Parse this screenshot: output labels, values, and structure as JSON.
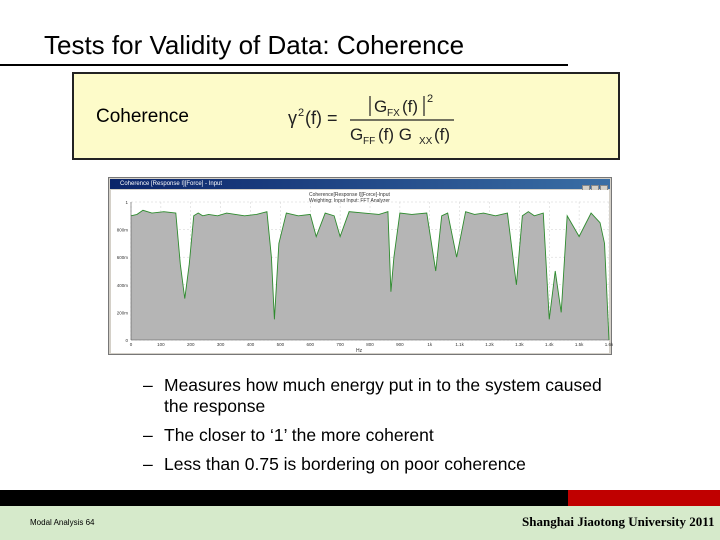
{
  "slide": {
    "title": "Tests for Validity of Data: Coherence",
    "formula_label": "Coherence",
    "bullets": [
      "Measures how much energy put in to the system caused the response",
      "The closer to ‘1’ the more coherent",
      "Less than 0.75 is bordering on poor coherence"
    ],
    "footer_left": "Modal Analysis 64",
    "footer_right": "Shanghai Jiaotong University 2011"
  },
  "colors": {
    "title_rule": "#000000",
    "formula_box_bg": "#fdfbc9",
    "footer_band": "#d6eacb",
    "footer_red": "#c00000",
    "coherence_fill": "#b5b5b5",
    "coherence_line": "#2e8b2e"
  },
  "chart_data": {
    "type": "area",
    "window_title": "Coherence [Response I][Force] - Input",
    "header_lines": [
      "Coherence[Response I][Force]-Input",
      "Weighting: Input   Input: FFT Analyzer"
    ],
    "y_tick_labels": [
      "1",
      "800m",
      "600m",
      "400m",
      "200m",
      "0"
    ],
    "x_tick_labels": [
      "0",
      "100",
      "200",
      "300",
      "400",
      "500",
      "600",
      "700",
      "800",
      "900",
      "1k",
      "1.1k",
      "1.2k",
      "1.3k",
      "1.4k",
      "1.5k",
      "1.6k"
    ],
    "xlabel": "Hz",
    "ylim": [
      0,
      1
    ],
    "xlim": [
      0,
      1600
    ],
    "grid": true,
    "series": [
      {
        "x": [
          0,
          20,
          40,
          70,
          110,
          150,
          165,
          180,
          195,
          210,
          225,
          240,
          260,
          290,
          320,
          350,
          380,
          420,
          455,
          470,
          480,
          495,
          520,
          560,
          600,
          620,
          650,
          680,
          700,
          730,
          780,
          830,
          860,
          870,
          880,
          900,
          940,
          990,
          1020,
          1040,
          1060,
          1090,
          1120,
          1150,
          1180,
          1220,
          1260,
          1290,
          1310,
          1330,
          1350,
          1380,
          1400,
          1420,
          1440,
          1460,
          1500,
          1540,
          1570,
          1585,
          1600
        ],
        "y": [
          0.9,
          0.91,
          0.94,
          0.92,
          0.93,
          0.92,
          0.55,
          0.3,
          0.55,
          0.9,
          0.92,
          0.9,
          0.91,
          0.9,
          0.92,
          0.91,
          0.9,
          0.91,
          0.93,
          0.6,
          0.15,
          0.7,
          0.92,
          0.9,
          0.91,
          0.75,
          0.92,
          0.9,
          0.75,
          0.93,
          0.92,
          0.91,
          0.93,
          0.35,
          0.6,
          0.92,
          0.91,
          0.92,
          0.5,
          0.9,
          0.92,
          0.6,
          0.93,
          0.91,
          0.92,
          0.9,
          0.92,
          0.4,
          0.9,
          0.93,
          0.9,
          0.92,
          0.15,
          0.5,
          0.2,
          0.9,
          0.75,
          0.92,
          0.85,
          0.7,
          0.0
        ]
      }
    ]
  }
}
